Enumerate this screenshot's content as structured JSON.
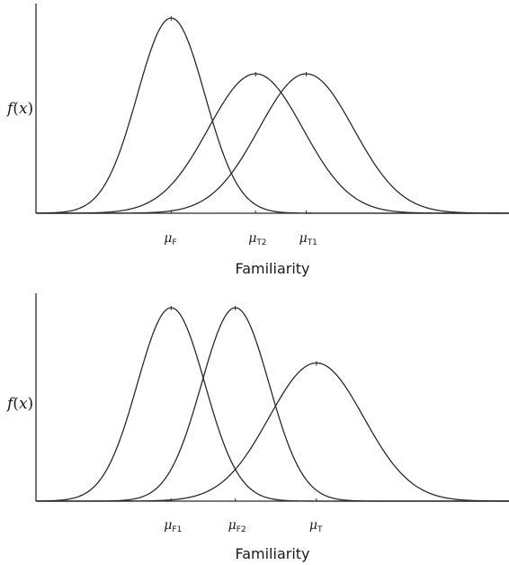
{
  "chart_data": [
    {
      "type": "line",
      "title": "",
      "ylabel": {
        "prefix": "f(",
        "var": "x",
        "suffix": ")"
      },
      "xlabel": "Familiarity",
      "xlim": [
        -4,
        10
      ],
      "ylim": [
        0,
        0.42
      ],
      "series": [
        {
          "mean": 0,
          "sd": 1.0
        },
        {
          "mean": 2.5,
          "sd": 1.4
        },
        {
          "mean": 4.0,
          "sd": 1.4
        }
      ],
      "tick_labels": [
        {
          "sym": "μ",
          "sub": "F",
          "x": 0
        },
        {
          "sym": "μ",
          "sub": "T2",
          "x": 2.5
        },
        {
          "sym": "μ",
          "sub": "T1",
          "x": 4.0
        }
      ]
    },
    {
      "type": "line",
      "title": "",
      "ylabel": {
        "prefix": "f(",
        "var": "x",
        "suffix": ")"
      },
      "xlabel": "Familiarity",
      "xlim": [
        -4,
        10
      ],
      "ylim": [
        0,
        0.42
      ],
      "series": [
        {
          "mean": 0,
          "sd": 1.0
        },
        {
          "mean": 1.9,
          "sd": 1.0
        },
        {
          "mean": 4.3,
          "sd": 1.4
        }
      ],
      "tick_labels": [
        {
          "sym": "μ",
          "sub": "F1",
          "x": 0
        },
        {
          "sym": "μ",
          "sub": "F2",
          "x": 1.9
        },
        {
          "sym": "μ",
          "sub": "T",
          "x": 4.3
        }
      ]
    }
  ]
}
